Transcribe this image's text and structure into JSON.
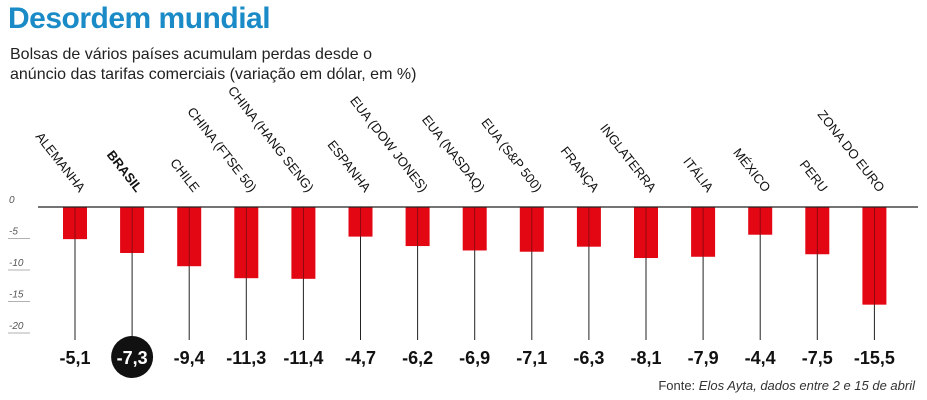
{
  "header": {
    "title": "Desordem mundial",
    "subtitle": "Bolsas de vários países acumulam perdas desde o anúncio das tarifas comerciais (variação em dólar, em %)"
  },
  "source": {
    "label": "Fonte: ",
    "text": "Elos Ayta, dados entre 2 e 15 de abril"
  },
  "colors": {
    "bar": "#e30613",
    "highlight_circle": "#111111",
    "axis": "#222222"
  },
  "chart_data": {
    "type": "bar",
    "title": "Desordem mundial",
    "subtitle": "Bolsas de vários países acumulam perdas desde o anúncio das tarifas comerciais (variação em dólar, em %)",
    "xlabel": "",
    "ylabel": "",
    "ylim": [
      -20,
      0
    ],
    "yticks": [
      0,
      -5,
      -10,
      -15,
      -20
    ],
    "ytick_labels": [
      "0",
      "-5",
      "-10",
      "-15",
      "-20"
    ],
    "grid": false,
    "legend": "none",
    "highlight": "BRASIL",
    "categories": [
      "ALEMANHA",
      "BRASIL",
      "CHILE",
      "CHINA (FTSE 50)",
      "CHINA (HANG SENG)",
      "ESPANHA",
      "EUA (DOW JONES)",
      "EUA (NASDAQ)",
      "EUA (S&P 500)",
      "FRANÇA",
      "INGLATERRA",
      "ITÁLIA",
      "MÉXICO",
      "PERU",
      "ZONA DO EURO"
    ],
    "values": [
      -5.1,
      -7.3,
      -9.4,
      -11.3,
      -11.4,
      -4.7,
      -6.2,
      -6.9,
      -7.1,
      -6.3,
      -8.1,
      -7.9,
      -4.4,
      -7.5,
      -15.5
    ],
    "value_labels": [
      "-5,1",
      "-7,3",
      "-9,4",
      "-11,3",
      "-11,4",
      "-4,7",
      "-6,2",
      "-6,9",
      "-7,1",
      "-6,3",
      "-8,1",
      "-7,9",
      "-4,4",
      "-7,5",
      "-15,5"
    ]
  }
}
